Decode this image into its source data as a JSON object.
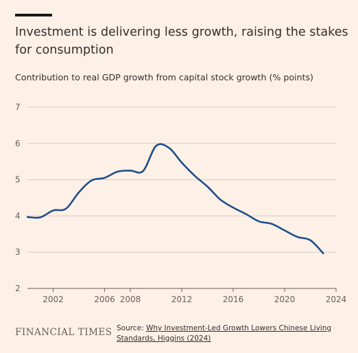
{
  "title": "Investment is delivering less growth, raising the stakes for consumption",
  "subtitle": "Contribution to real GDP growth from capital stock growth (% points)",
  "footer": {
    "logo": "FINANCIAL TIMES",
    "source_prefix": "Source: ",
    "source_link": "Why Investment-Led Growth Lowers Chinese Living Standards, Higgins (2024)"
  },
  "colors": {
    "background": "#fdf0e6",
    "line": "#1f4e8c",
    "grid": "#d9ccc1",
    "text": "#33302e"
  },
  "chart_data": {
    "type": "line",
    "title": "Investment is delivering less growth, raising the stakes for consumption",
    "ylabel": "Contribution to real GDP growth from capital stock growth (% points)",
    "xlabel": "",
    "xlim": [
      2000,
      2024
    ],
    "ylim": [
      2,
      7
    ],
    "x_ticks": [
      2002,
      2006,
      2008,
      2012,
      2016,
      2020,
      2024
    ],
    "y_ticks": [
      2,
      3,
      4,
      5,
      6,
      7
    ],
    "grid": true,
    "series": [
      {
        "x": [
          2000,
          2001,
          2002,
          2003,
          2004,
          2005,
          2006,
          2007,
          2008,
          2009,
          2010,
          2011,
          2012,
          2013,
          2014,
          2015,
          2016,
          2017,
          2018,
          2019,
          2020,
          2021,
          2022,
          2023
        ],
        "values": [
          3.97,
          3.96,
          4.15,
          4.2,
          4.65,
          4.98,
          5.05,
          5.22,
          5.25,
          5.24,
          5.93,
          5.88,
          5.47,
          5.11,
          4.81,
          4.45,
          4.23,
          4.05,
          3.85,
          3.78,
          3.6,
          3.42,
          3.33,
          2.97
        ]
      }
    ]
  }
}
